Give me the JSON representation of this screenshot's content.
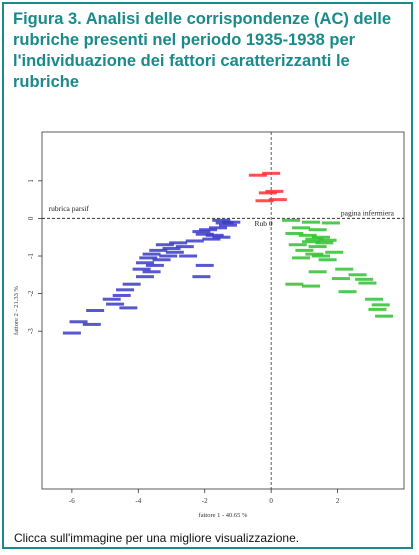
{
  "figure": {
    "title_bold": "Figura 3.",
    "title_rest": " Analisi delle corrispondenze (AC) delle rubriche presenti nel periodo 1935-1938 per l'individuazione dei fattori caratterizzanti le rubriche",
    "caption": "Clicca sull'immagine per una migliore visualizzazione.",
    "accent_color": "#1a8a8a"
  },
  "chart_data": {
    "type": "scatter",
    "title": "",
    "xlabel": "fattore 1 - 40.65 %",
    "ylabel": "fattore 2 - 21.33 %",
    "xlim": [
      -6.9,
      4.0
    ],
    "ylim": [
      -7.2,
      2.3
    ],
    "xticks": [
      -6,
      -4,
      -2,
      0,
      2
    ],
    "yticks": [
      1,
      0,
      -1,
      -2,
      -3
    ],
    "grid": false,
    "annotations": [
      {
        "text": "rubrica parsif",
        "x": -6.7,
        "y": 0.2
      },
      {
        "text": "pagina infermiera",
        "x": 2.1,
        "y": 0.08
      },
      {
        "text": "Rub 0",
        "x": -0.5,
        "y": -0.2
      }
    ],
    "series": [
      {
        "color": "#ff3030",
        "points": [
          {
            "x": 0.0,
            "y": 1.2
          },
          {
            "x": -0.4,
            "y": 1.15
          },
          {
            "x": 0.1,
            "y": 0.72
          },
          {
            "x": -0.1,
            "y": 0.68
          },
          {
            "x": 0.2,
            "y": 0.5
          },
          {
            "x": -0.2,
            "y": 0.47
          }
        ]
      },
      {
        "color": "#3a3ac8",
        "points": [
          {
            "x": -1.5,
            "y": -0.05
          },
          {
            "x": -1.2,
            "y": -0.1
          },
          {
            "x": -1.4,
            "y": -0.12
          },
          {
            "x": -1.3,
            "y": -0.18
          },
          {
            "x": -1.6,
            "y": -0.25
          },
          {
            "x": -1.9,
            "y": -0.3
          },
          {
            "x": -2.1,
            "y": -0.35
          },
          {
            "x": -2.0,
            "y": -0.42
          },
          {
            "x": -1.7,
            "y": -0.45
          },
          {
            "x": -1.5,
            "y": -0.5
          },
          {
            "x": -1.8,
            "y": -0.55
          },
          {
            "x": -2.3,
            "y": -0.6
          },
          {
            "x": -2.8,
            "y": -0.65
          },
          {
            "x": -3.2,
            "y": -0.7
          },
          {
            "x": -2.6,
            "y": -0.75
          },
          {
            "x": -3.0,
            "y": -0.8
          },
          {
            "x": -3.4,
            "y": -0.85
          },
          {
            "x": -2.9,
            "y": -0.9
          },
          {
            "x": -3.6,
            "y": -0.95
          },
          {
            "x": -3.1,
            "y": -1.0
          },
          {
            "x": -2.5,
            "y": -1.0
          },
          {
            "x": -3.7,
            "y": -1.05
          },
          {
            "x": -3.3,
            "y": -1.1
          },
          {
            "x": -3.8,
            "y": -1.18
          },
          {
            "x": -3.5,
            "y": -1.25
          },
          {
            "x": -2.0,
            "y": -1.25
          },
          {
            "x": -3.9,
            "y": -1.35
          },
          {
            "x": -3.6,
            "y": -1.42
          },
          {
            "x": -3.8,
            "y": -1.55
          },
          {
            "x": -2.1,
            "y": -1.55
          },
          {
            "x": -4.2,
            "y": -1.75
          },
          {
            "x": -4.4,
            "y": -1.9
          },
          {
            "x": -4.5,
            "y": -2.05
          },
          {
            "x": -4.8,
            "y": -2.15
          },
          {
            "x": -4.7,
            "y": -2.28
          },
          {
            "x": -4.3,
            "y": -2.38
          },
          {
            "x": -5.3,
            "y": -2.45
          },
          {
            "x": -5.8,
            "y": -2.75
          },
          {
            "x": -5.4,
            "y": -2.82
          },
          {
            "x": -6.0,
            "y": -3.05
          }
        ]
      },
      {
        "color": "#30c030",
        "points": [
          {
            "x": 0.6,
            "y": -0.05
          },
          {
            "x": 1.2,
            "y": -0.1
          },
          {
            "x": 1.8,
            "y": -0.12
          },
          {
            "x": 0.9,
            "y": -0.25
          },
          {
            "x": 1.4,
            "y": -0.3
          },
          {
            "x": 0.7,
            "y": -0.4
          },
          {
            "x": 1.1,
            "y": -0.45
          },
          {
            "x": 1.5,
            "y": -0.5
          },
          {
            "x": 1.3,
            "y": -0.55
          },
          {
            "x": 1.7,
            "y": -0.58
          },
          {
            "x": 1.2,
            "y": -0.62
          },
          {
            "x": 1.6,
            "y": -0.65
          },
          {
            "x": 0.8,
            "y": -0.7
          },
          {
            "x": 1.4,
            "y": -0.75
          },
          {
            "x": 1.0,
            "y": -0.85
          },
          {
            "x": 1.9,
            "y": -0.9
          },
          {
            "x": 1.3,
            "y": -0.95
          },
          {
            "x": 1.5,
            "y": -1.0
          },
          {
            "x": 0.9,
            "y": -1.05
          },
          {
            "x": 1.7,
            "y": -1.1
          },
          {
            "x": 2.2,
            "y": -1.35
          },
          {
            "x": 1.4,
            "y": -1.42
          },
          {
            "x": 2.6,
            "y": -1.5
          },
          {
            "x": 2.1,
            "y": -1.6
          },
          {
            "x": 2.8,
            "y": -1.62
          },
          {
            "x": 2.9,
            "y": -1.72
          },
          {
            "x": 0.7,
            "y": -1.75
          },
          {
            "x": 1.2,
            "y": -1.8
          },
          {
            "x": 2.3,
            "y": -1.95
          },
          {
            "x": 3.1,
            "y": -2.15
          },
          {
            "x": 3.3,
            "y": -2.3
          },
          {
            "x": 3.2,
            "y": -2.42
          },
          {
            "x": 3.4,
            "y": -2.6
          }
        ]
      }
    ]
  }
}
